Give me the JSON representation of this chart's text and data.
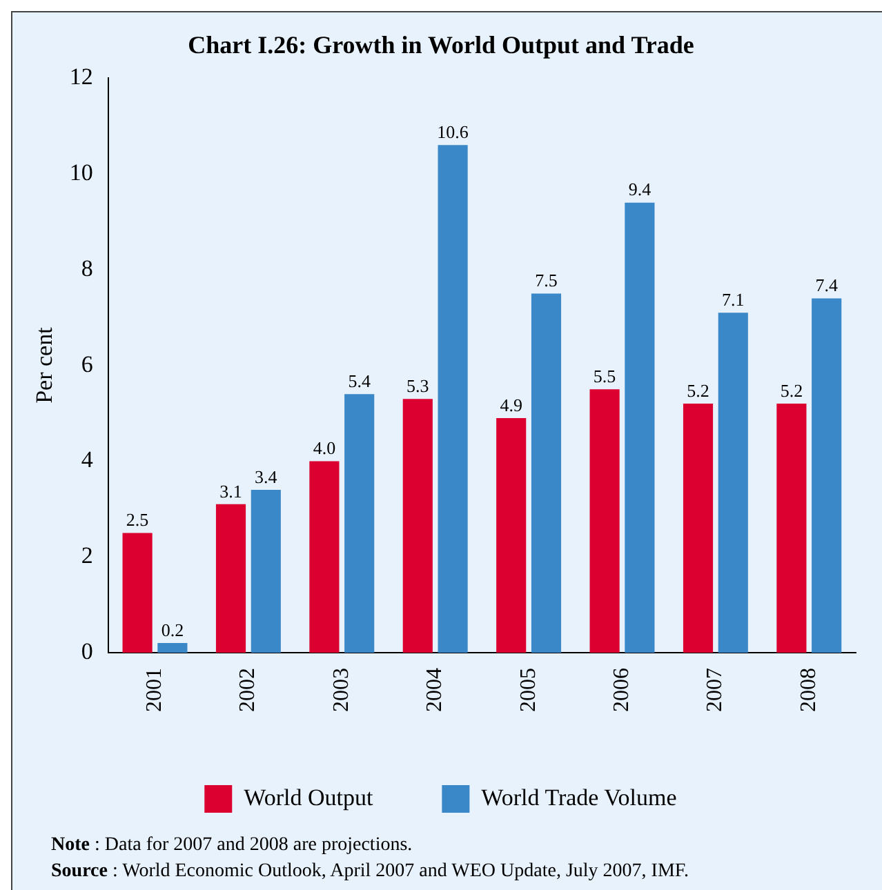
{
  "chart_data": {
    "type": "bar",
    "title": "Chart I.26: Growth in World Output and Trade",
    "ylabel": "Per cent",
    "categories": [
      "2001",
      "2002",
      "2003",
      "2004",
      "2005",
      "2006",
      "2007",
      "2008"
    ],
    "series": [
      {
        "name": "World Output",
        "color": "#dc0030",
        "values": [
          2.5,
          3.1,
          4.0,
          5.3,
          4.9,
          5.5,
          5.2,
          5.2
        ],
        "value_labels": [
          "2.5",
          "3.1",
          "4.0",
          "5.3",
          "4.9",
          "5.5",
          "5.2",
          "5.2"
        ]
      },
      {
        "name": "World Trade Volume",
        "color": "#3a88c8",
        "values": [
          0.2,
          3.4,
          5.4,
          10.6,
          7.5,
          9.4,
          7.1,
          7.4
        ],
        "value_labels": [
          "0.2",
          "3.4",
          "5.4",
          "10.6",
          "7.5",
          "9.4",
          "7.1",
          "7.4"
        ]
      }
    ],
    "ylim": [
      0,
      12
    ],
    "yticks": [
      0,
      2,
      4,
      6,
      8,
      10,
      12
    ],
    "grid": false,
    "legend": "bottom",
    "annotations": [
      "Note : Data for 2007 and 2008 are projections.",
      "Source : World Economic Outlook, April 2007 and WEO Update, July 2007, IMF."
    ]
  }
}
